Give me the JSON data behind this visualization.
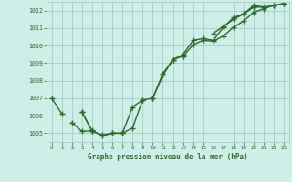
{
  "title": "Graphe pression niveau de la mer (hPa)",
  "line1": [
    1007.0,
    1006.1,
    null,
    1006.2,
    1005.1,
    1004.9,
    1005.0,
    1005.0,
    1006.5,
    1006.9,
    null,
    null,
    null,
    null,
    null,
    null,
    null,
    null,
    null,
    null,
    null,
    null,
    null,
    null
  ],
  "line2": [
    null,
    null,
    1005.6,
    1005.1,
    1005.15,
    1004.85,
    1005.0,
    1005.0,
    1005.3,
    1006.9,
    1007.0,
    1008.3,
    1009.2,
    1009.5,
    1010.3,
    1010.4,
    1010.3,
    1011.05,
    1011.6,
    1011.8,
    1012.3,
    1012.2,
    null,
    null
  ],
  "line3": [
    null,
    null,
    null,
    1006.2,
    1005.1,
    null,
    null,
    null,
    null,
    null,
    1007.0,
    1008.4,
    1009.2,
    1009.4,
    1010.05,
    1010.3,
    1010.25,
    1010.55,
    1011.05,
    1011.4,
    1011.9,
    1012.1,
    1012.3,
    1012.4
  ],
  "line4": [
    null,
    null,
    null,
    null,
    null,
    null,
    null,
    null,
    null,
    null,
    null,
    null,
    null,
    null,
    null,
    null,
    1010.7,
    1011.1,
    1011.5,
    1011.8,
    1012.2,
    1012.2,
    1012.3,
    1012.4
  ],
  "ylim": [
    1004.5,
    1012.5
  ],
  "yticks": [
    1005,
    1006,
    1007,
    1008,
    1009,
    1010,
    1011,
    1012
  ],
  "line_color": "#2d6a2d",
  "bg_color": "#ceeee8",
  "grid_color": "#aaccc6",
  "label_color": "#2d6a2d",
  "title_color": "#2d6a2d",
  "markersize": 2.5,
  "linewidth": 1.0
}
